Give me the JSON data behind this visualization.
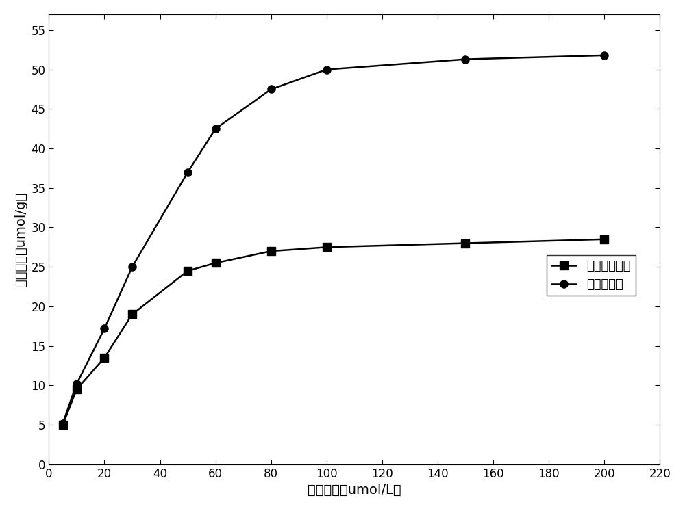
{
  "non_imprinted_x": [
    5,
    10,
    20,
    30,
    50,
    60,
    80,
    100,
    150,
    200
  ],
  "non_imprinted_y": [
    5.0,
    9.5,
    13.5,
    19.0,
    24.5,
    25.5,
    27.0,
    27.5,
    28.0,
    28.5
  ],
  "imprinted_x": [
    5,
    10,
    20,
    30,
    50,
    60,
    80,
    100,
    150,
    200
  ],
  "imprinted_y": [
    5.2,
    10.2,
    17.2,
    25.0,
    37.0,
    42.5,
    47.5,
    50.0,
    51.3,
    51.8
  ],
  "xlabel": "初始浓度（umol/L）",
  "ylabel": "吸附容量（umol/g）",
  "legend_non": "非印迹吸附剂",
  "legend_imp": "印迹吸附剂",
  "xlim": [
    0,
    220
  ],
  "ylim": [
    0,
    57
  ],
  "xticks": [
    0,
    20,
    40,
    60,
    80,
    100,
    120,
    140,
    160,
    180,
    200,
    220
  ],
  "yticks": [
    0,
    5,
    10,
    15,
    20,
    25,
    30,
    35,
    40,
    45,
    50,
    55
  ],
  "line_color": "#000000",
  "marker_square": "s",
  "marker_circle": "o",
  "markersize": 8,
  "linewidth": 1.8,
  "background_color": "#ffffff",
  "legend_fontsize": 13,
  "axis_fontsize": 14,
  "tick_fontsize": 12
}
